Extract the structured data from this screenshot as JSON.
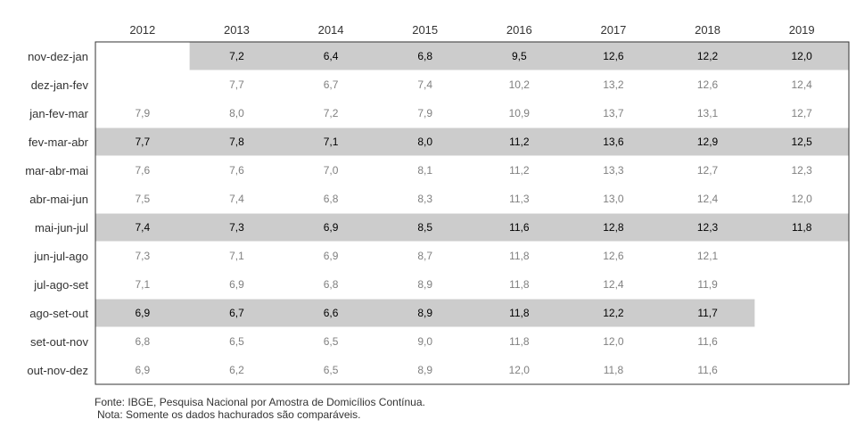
{
  "chart_data": {
    "type": "table",
    "columns": [
      "2012",
      "2013",
      "2014",
      "2015",
      "2016",
      "2017",
      "2018",
      "2019"
    ],
    "rows": [
      {
        "label": "nov-dez-jan",
        "values": [
          "",
          "7,2",
          "6,4",
          "6,8",
          "9,5",
          "12,6",
          "12,2",
          "12,0"
        ],
        "highlight": true
      },
      {
        "label": "dez-jan-fev",
        "values": [
          "",
          "7,7",
          "6,7",
          "7,4",
          "10,2",
          "13,2",
          "12,6",
          "12,4"
        ],
        "highlight": false
      },
      {
        "label": "jan-fev-mar",
        "values": [
          "7,9",
          "8,0",
          "7,2",
          "7,9",
          "10,9",
          "13,7",
          "13,1",
          "12,7"
        ],
        "highlight": false
      },
      {
        "label": "fev-mar-abr",
        "values": [
          "7,7",
          "7,8",
          "7,1",
          "8,0",
          "11,2",
          "13,6",
          "12,9",
          "12,5"
        ],
        "highlight": true
      },
      {
        "label": "mar-abr-mai",
        "values": [
          "7,6",
          "7,6",
          "7,0",
          "8,1",
          "11,2",
          "13,3",
          "12,7",
          "12,3"
        ],
        "highlight": false
      },
      {
        "label": "abr-mai-jun",
        "values": [
          "7,5",
          "7,4",
          "6,8",
          "8,3",
          "11,3",
          "13,0",
          "12,4",
          "12,0"
        ],
        "highlight": false
      },
      {
        "label": "mai-jun-jul",
        "values": [
          "7,4",
          "7,3",
          "6,9",
          "8,5",
          "11,6",
          "12,8",
          "12,3",
          "11,8"
        ],
        "highlight": true
      },
      {
        "label": "jun-jul-ago",
        "values": [
          "7,3",
          "7,1",
          "6,9",
          "8,7",
          "11,8",
          "12,6",
          "12,1",
          ""
        ],
        "highlight": false
      },
      {
        "label": "jul-ago-set",
        "values": [
          "7,1",
          "6,9",
          "6,8",
          "8,9",
          "11,8",
          "12,4",
          "11,9",
          ""
        ],
        "highlight": false
      },
      {
        "label": "ago-set-out",
        "values": [
          "6,9",
          "6,7",
          "6,6",
          "8,9",
          "11,8",
          "12,2",
          "11,7",
          ""
        ],
        "highlight": true
      },
      {
        "label": "set-out-nov",
        "values": [
          "6,8",
          "6,5",
          "6,5",
          "9,0",
          "11,8",
          "12,0",
          "11,6",
          ""
        ],
        "highlight": false
      },
      {
        "label": "out-nov-dez",
        "values": [
          "6,9",
          "6,2",
          "6,5",
          "8,9",
          "12,0",
          "11,8",
          "11,6",
          ""
        ],
        "highlight": false
      }
    ],
    "highlight_color": "#cccccc",
    "highlighted_text_color": "#000000",
    "normal_text_color": "#808080"
  },
  "footer": {
    "fonte": "Fonte: IBGE, Pesquisa Nacional por Amostra de Domicílios Contínua.",
    "nota": "Nota: Somente os dados hachurados são comparáveis."
  }
}
